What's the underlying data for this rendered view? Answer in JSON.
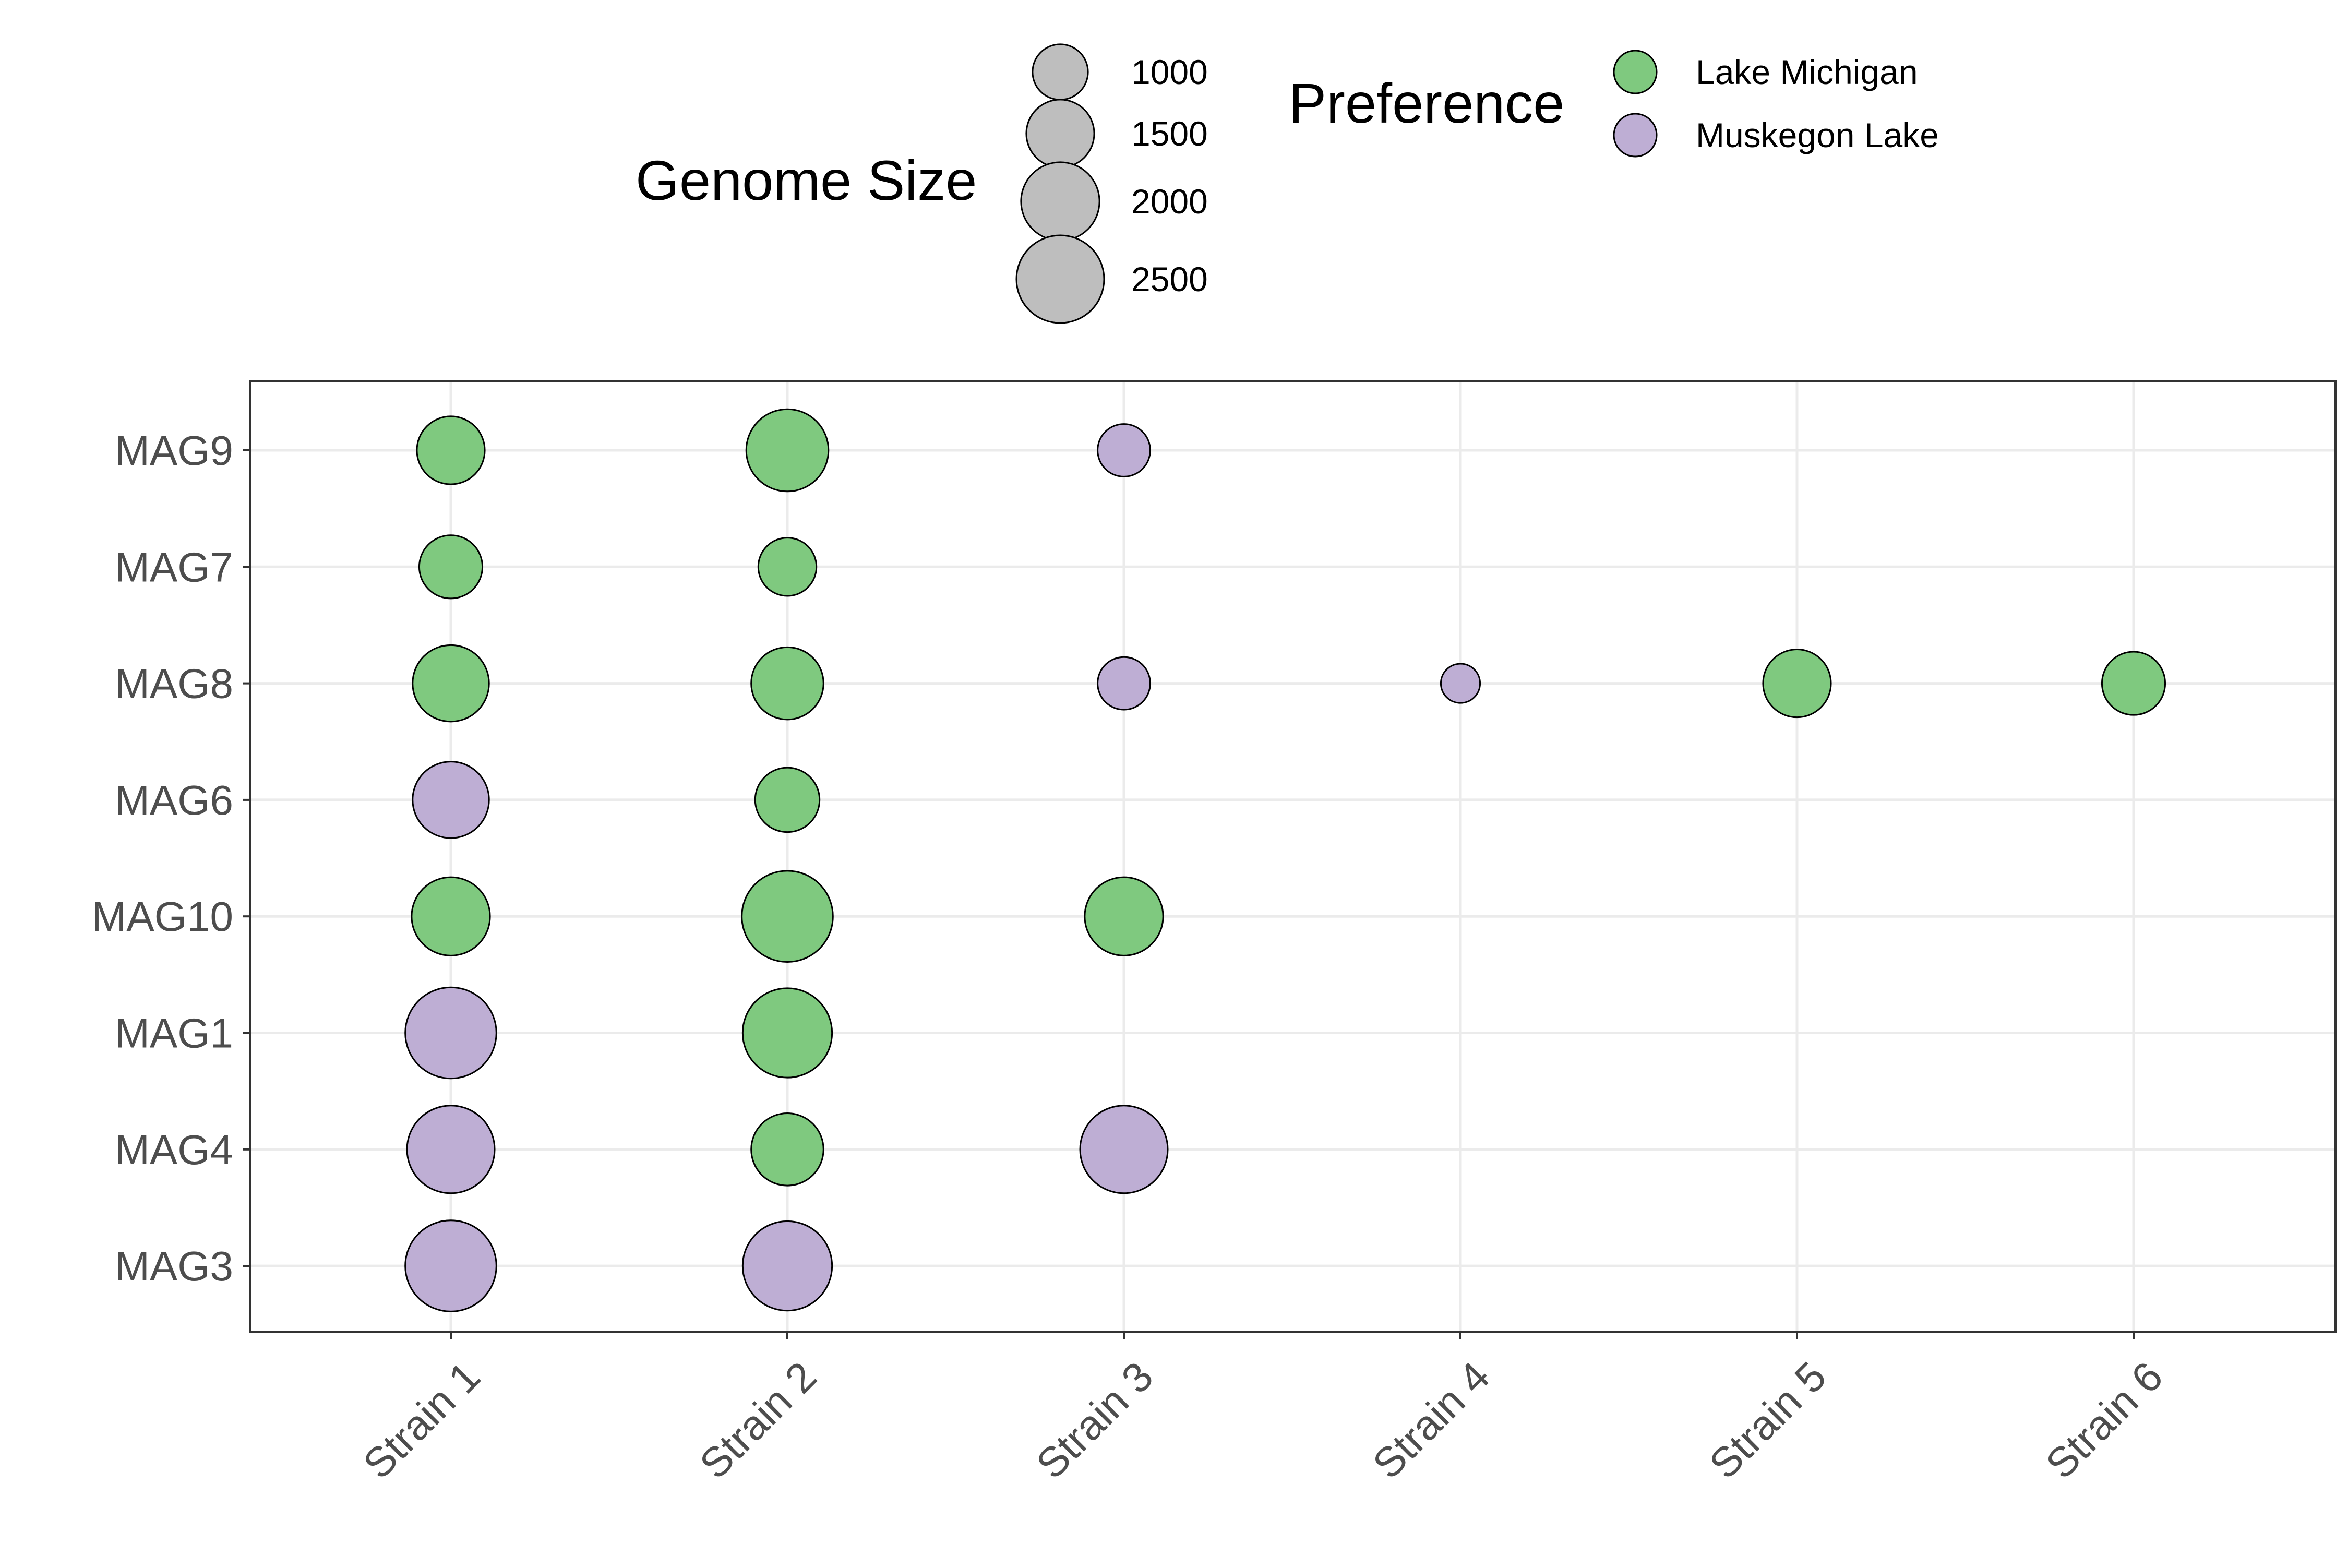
{
  "chart_data": {
    "type": "scatter",
    "title": "",
    "xlabel": "",
    "ylabel": "",
    "x_categories": [
      "Strain 1",
      "Strain 2",
      "Strain 3",
      "Strain 4",
      "Strain 5",
      "Strain 6"
    ],
    "y_categories": [
      "MAG3",
      "MAG4",
      "MAG1",
      "MAG10",
      "MAG6",
      "MAG8",
      "MAG7",
      "MAG9"
    ],
    "grid": true,
    "size_legend": {
      "title": "Genome Size",
      "breaks": [
        1000,
        1500,
        2000,
        2500
      ],
      "labels": [
        "1000",
        "1500",
        "2000",
        "2500"
      ]
    },
    "color_legend": {
      "title": "Preference",
      "entries": [
        {
          "label": "Lake Michigan",
          "color": "#7fc97f"
        },
        {
          "label": "Muskegon Lake",
          "color": "#beaed4"
        }
      ]
    },
    "legend_position": "top",
    "points": [
      {
        "x": "Strain 1",
        "y": "MAG9",
        "size": 1500,
        "preference": "Lake Michigan"
      },
      {
        "x": "Strain 2",
        "y": "MAG9",
        "size": 2200,
        "preference": "Lake Michigan"
      },
      {
        "x": "Strain 3",
        "y": "MAG9",
        "size": 900,
        "preference": "Muskegon Lake"
      },
      {
        "x": "Strain 1",
        "y": "MAG7",
        "size": 1300,
        "preference": "Lake Michigan"
      },
      {
        "x": "Strain 2",
        "y": "MAG7",
        "size": 1100,
        "preference": "Lake Michigan"
      },
      {
        "x": "Strain 1",
        "y": "MAG8",
        "size": 1900,
        "preference": "Lake Michigan"
      },
      {
        "x": "Strain 2",
        "y": "MAG8",
        "size": 1700,
        "preference": "Lake Michigan"
      },
      {
        "x": "Strain 3",
        "y": "MAG8",
        "size": 900,
        "preference": "Muskegon Lake"
      },
      {
        "x": "Strain 4",
        "y": "MAG8",
        "size": 500,
        "preference": "Muskegon Lake"
      },
      {
        "x": "Strain 5",
        "y": "MAG8",
        "size": 1500,
        "preference": "Lake Michigan"
      },
      {
        "x": "Strain 6",
        "y": "MAG8",
        "size": 1300,
        "preference": "Lake Michigan"
      },
      {
        "x": "Strain 1",
        "y": "MAG6",
        "size": 1900,
        "preference": "Muskegon Lake"
      },
      {
        "x": "Strain 2",
        "y": "MAG6",
        "size": 1350,
        "preference": "Lake Michigan"
      },
      {
        "x": "Strain 1",
        "y": "MAG10",
        "size": 2000,
        "preference": "Lake Michigan"
      },
      {
        "x": "Strain 2",
        "y": "MAG10",
        "size": 2700,
        "preference": "Lake Michigan"
      },
      {
        "x": "Strain 3",
        "y": "MAG10",
        "size": 2000,
        "preference": "Lake Michigan"
      },
      {
        "x": "Strain 1",
        "y": "MAG1",
        "size": 2700,
        "preference": "Muskegon Lake"
      },
      {
        "x": "Strain 2",
        "y": "MAG1",
        "size": 2600,
        "preference": "Lake Michigan"
      },
      {
        "x": "Strain 1",
        "y": "MAG4",
        "size": 2500,
        "preference": "Muskegon Lake"
      },
      {
        "x": "Strain 2",
        "y": "MAG4",
        "size": 1700,
        "preference": "Lake Michigan"
      },
      {
        "x": "Strain 3",
        "y": "MAG4",
        "size": 2500,
        "preference": "Muskegon Lake"
      },
      {
        "x": "Strain 1",
        "y": "MAG3",
        "size": 2700,
        "preference": "Muskegon Lake"
      },
      {
        "x": "Strain 2",
        "y": "MAG3",
        "size": 2600,
        "preference": "Muskegon Lake"
      }
    ]
  }
}
